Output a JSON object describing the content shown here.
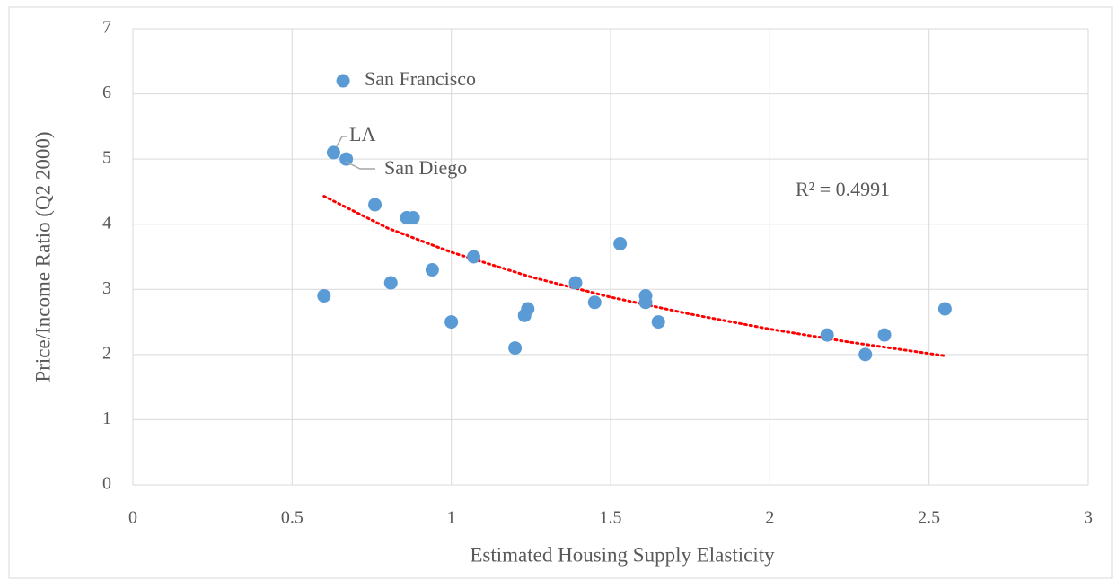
{
  "chart_data": {
    "type": "scatter",
    "x_label": "Estimated Housing Supply Elasticity",
    "y_label": "Price/Income Ratio (Q2 2000)",
    "x": [
      0.66,
      0.63,
      0.67,
      0.76,
      0.86,
      0.88,
      0.6,
      0.81,
      0.94,
      1.0,
      1.07,
      1.2,
      1.23,
      1.24,
      1.39,
      1.45,
      1.53,
      1.61,
      1.61,
      1.65,
      2.18,
      2.3,
      2.36,
      2.55
    ],
    "values": [
      6.2,
      5.1,
      5.0,
      4.3,
      4.1,
      4.1,
      2.9,
      3.1,
      3.3,
      2.5,
      3.5,
      2.1,
      2.6,
      2.7,
      3.1,
      2.8,
      3.7,
      2.9,
      2.8,
      2.5,
      2.3,
      2.0,
      2.3,
      2.7
    ],
    "color": "#5b9bd5",
    "trendline": {
      "color": "#ff0000",
      "x": [
        0.6,
        0.8,
        1.0,
        1.25,
        1.5,
        1.75,
        2.0,
        2.25,
        2.55
      ],
      "values": [
        4.43,
        3.94,
        3.57,
        3.19,
        2.88,
        2.62,
        2.39,
        2.19,
        1.98
      ]
    },
    "annotations": [
      "San Francisco",
      "LA",
      "San Diego",
      "R² = 0.4991"
    ],
    "xlim": [
      0,
      3
    ],
    "xticks": [
      0,
      0.5,
      1,
      1.5,
      2,
      2.5,
      3
    ],
    "ylim": [
      0,
      7
    ],
    "yticks": [
      0,
      1,
      2,
      3,
      4,
      5,
      6,
      7
    ],
    "grid": true
  }
}
